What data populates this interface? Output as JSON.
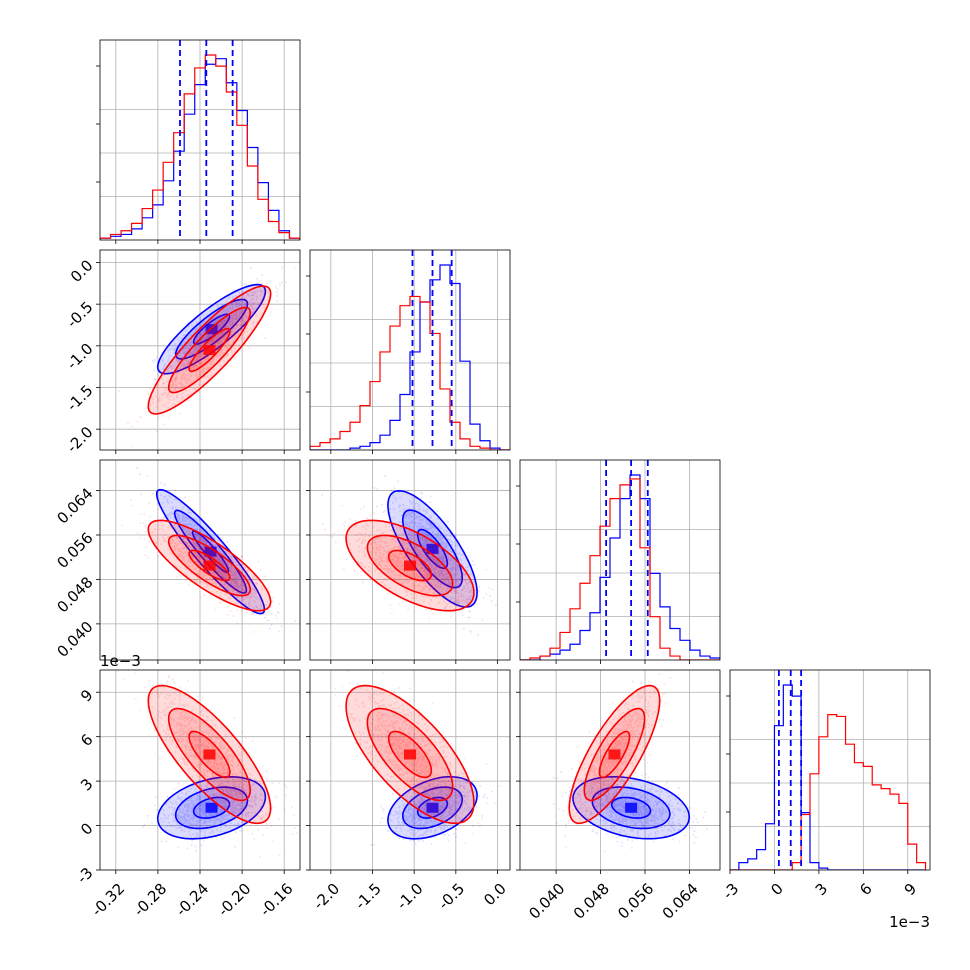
{
  "chart_data": {
    "type": "corner",
    "series": [
      {
        "name": "",
        "color": "#0000ff"
      },
      {
        "name": "",
        "color": "#ff0000"
      }
    ],
    "grid": true,
    "quantile_color": "#0000ff",
    "params": [
      {
        "range": [
          -0.335,
          -0.145
        ],
        "ticks": [
          "-0.32",
          "-0.28",
          "-0.24",
          "-0.20",
          "-0.16"
        ],
        "tick_values": [
          -0.32,
          -0.28,
          -0.24,
          -0.2,
          -0.16
        ],
        "offset_text": "",
        "quantiles": [
          -0.259,
          -0.234,
          -0.209
        ],
        "hist_bins": [
          -0.335,
          -0.325,
          -0.315,
          -0.305,
          -0.295,
          -0.285,
          -0.275,
          -0.265,
          -0.255,
          -0.245,
          -0.235,
          -0.225,
          -0.215,
          -0.205,
          -0.195,
          -0.185,
          -0.175,
          -0.165,
          -0.155,
          -0.145
        ],
        "hist": [
          [
            0.01,
            0.02,
            0.03,
            0.06,
            0.12,
            0.19,
            0.32,
            0.48,
            0.68,
            0.84,
            0.95,
            0.98,
            0.85,
            0.7,
            0.5,
            0.31,
            0.16,
            0.05,
            0.01
          ],
          [
            0.01,
            0.03,
            0.05,
            0.09,
            0.17,
            0.27,
            0.42,
            0.58,
            0.79,
            0.93,
            1.0,
            0.94,
            0.8,
            0.62,
            0.4,
            0.22,
            0.1,
            0.04,
            0.01
          ]
        ]
      },
      {
        "range": [
          -2.25,
          0.15
        ],
        "ticks": [
          "-2.0",
          "-1.5",
          "-1.0",
          "-0.5",
          "0.0"
        ],
        "tick_values": [
          -2.0,
          -1.5,
          -1.0,
          -0.5,
          0.0
        ],
        "offset_text": "",
        "quantiles": [
          -1.02,
          -0.78,
          -0.55
        ],
        "hist_bins": [
          -2.25,
          -2.13,
          -2.01,
          -1.89,
          -1.77,
          -1.65,
          -1.53,
          -1.41,
          -1.29,
          -1.17,
          -1.05,
          -0.93,
          -0.81,
          -0.69,
          -0.57,
          -0.45,
          -0.33,
          -0.21,
          -0.09,
          0.03,
          0.15
        ],
        "hist": [
          [
            0.0,
            0.0,
            0.0,
            0.0,
            0.01,
            0.02,
            0.04,
            0.08,
            0.16,
            0.3,
            0.53,
            0.8,
            0.92,
            1.0,
            0.9,
            0.48,
            0.14,
            0.05,
            0.01,
            0.0
          ],
          [
            0.02,
            0.04,
            0.06,
            0.1,
            0.15,
            0.24,
            0.37,
            0.53,
            0.67,
            0.78,
            0.83,
            0.8,
            0.63,
            0.33,
            0.15,
            0.06,
            0.02,
            0.01,
            0.0,
            0.0
          ]
        ]
      },
      {
        "range": [
          0.0335,
          0.0695
        ],
        "ticks": [
          "0.040",
          "0.048",
          "0.056",
          "0.064"
        ],
        "tick_values": [
          0.04,
          0.048,
          0.056,
          0.064
        ],
        "offset_text": "",
        "quantiles": [
          0.049,
          0.0535,
          0.0565
        ],
        "hist_bins": [
          0.0335,
          0.0353,
          0.0371,
          0.0389,
          0.0407,
          0.0425,
          0.0443,
          0.0461,
          0.0479,
          0.0497,
          0.0515,
          0.0533,
          0.0551,
          0.0569,
          0.0587,
          0.0605,
          0.0623,
          0.0641,
          0.0659,
          0.0677,
          0.0695
        ],
        "hist": [
          [
            0.0,
            0.0,
            0.02,
            0.03,
            0.05,
            0.08,
            0.15,
            0.24,
            0.42,
            0.62,
            0.82,
            0.94,
            0.82,
            0.44,
            0.27,
            0.16,
            0.1,
            0.05,
            0.02,
            0.01
          ],
          [
            0.0,
            0.01,
            0.02,
            0.06,
            0.14,
            0.26,
            0.39,
            0.53,
            0.68,
            0.82,
            0.89,
            0.92,
            0.57,
            0.22,
            0.06,
            0.02,
            0.0,
            0.0,
            0.0,
            0.0
          ]
        ]
      },
      {
        "range": [
          -0.003,
          0.0105
        ],
        "ticks": [
          "-3",
          "0",
          "3",
          "6",
          "9"
        ],
        "tick_values": [
          -0.003,
          0.0,
          0.003,
          0.006,
          0.009
        ],
        "offset_text": "1e−3",
        "quantiles": [
          0.0003,
          0.0011,
          0.0018
        ],
        "hist_bins": [
          -0.003,
          -0.0024,
          -0.0018,
          -0.0012,
          -0.0006,
          0.0,
          0.0006,
          0.0012,
          0.0018,
          0.0024,
          0.003,
          0.0036,
          0.0042,
          0.0048,
          0.0054,
          0.006,
          0.0066,
          0.0072,
          0.0078,
          0.0084,
          0.009,
          0.0096,
          0.0102
        ],
        "hist": [
          [
            0.0,
            0.04,
            0.06,
            0.11,
            0.25,
            0.78,
            1.0,
            0.94,
            0.31,
            0.04,
            0.01,
            0.0,
            0.0,
            0.0,
            0.0,
            0.0,
            0.0,
            0.0,
            0.0,
            0.0,
            0.0,
            0.0
          ],
          [
            0.0,
            0.0,
            0.0,
            0.0,
            0.0,
            0.0,
            0.0,
            0.04,
            0.3,
            0.52,
            0.72,
            0.84,
            0.83,
            0.68,
            0.58,
            0.56,
            0.46,
            0.44,
            0.41,
            0.36,
            0.14,
            0.04
          ]
        ]
      }
    ],
    "pairs": [
      {
        "row": 1,
        "col": 0,
        "series": [
          {
            "mean": [
              -0.229,
              -0.8
            ],
            "sd": [
              0.022,
              0.23
            ],
            "rho": 0.85
          },
          {
            "mean": [
              -0.231,
              -1.05
            ],
            "sd": [
              0.025,
              0.33
            ],
            "rho": 0.88
          }
        ]
      },
      {
        "row": 2,
        "col": 0,
        "series": [
          {
            "mean": [
              -0.23,
              0.053
            ],
            "sd": [
              0.022,
              0.0048
            ],
            "rho": -0.93
          },
          {
            "mean": [
              -0.231,
              0.0505
            ],
            "sd": [
              0.025,
              0.0035
            ],
            "rho": -0.8
          }
        ]
      },
      {
        "row": 2,
        "col": 1,
        "series": [
          {
            "mean": [
              -0.78,
              0.0535
            ],
            "sd": [
              0.23,
              0.0045
            ],
            "rho": -0.75
          },
          {
            "mean": [
              -1.05,
              0.0505
            ],
            "sd": [
              0.33,
              0.0035
            ],
            "rho": -0.6
          }
        ]
      },
      {
        "row": 3,
        "col": 0,
        "series": [
          {
            "mean": [
              -0.229,
              0.0012
            ],
            "sd": [
              0.022,
              0.0009
            ],
            "rho": 0.35
          },
          {
            "mean": [
              -0.231,
              0.0048
            ],
            "sd": [
              0.025,
              0.002
            ],
            "rho": -0.78
          }
        ]
      },
      {
        "row": 3,
        "col": 1,
        "series": [
          {
            "mean": [
              -0.78,
              0.0012
            ],
            "sd": [
              0.23,
              0.0009
            ],
            "rho": 0.4
          },
          {
            "mean": [
              -1.05,
              0.0048
            ],
            "sd": [
              0.33,
              0.002
            ],
            "rho": -0.7
          }
        ]
      },
      {
        "row": 3,
        "col": 2,
        "series": [
          {
            "mean": [
              0.0535,
              0.0012
            ],
            "sd": [
              0.0045,
              0.0009
            ],
            "rho": -0.3
          },
          {
            "mean": [
              0.0505,
              0.0048
            ],
            "sd": [
              0.0035,
              0.002
            ],
            "rho": 0.78
          }
        ]
      }
    ],
    "contour_levels_sigma": [
      0.5,
      1.0,
      1.5
    ],
    "y_offset_text": "1e−3"
  }
}
